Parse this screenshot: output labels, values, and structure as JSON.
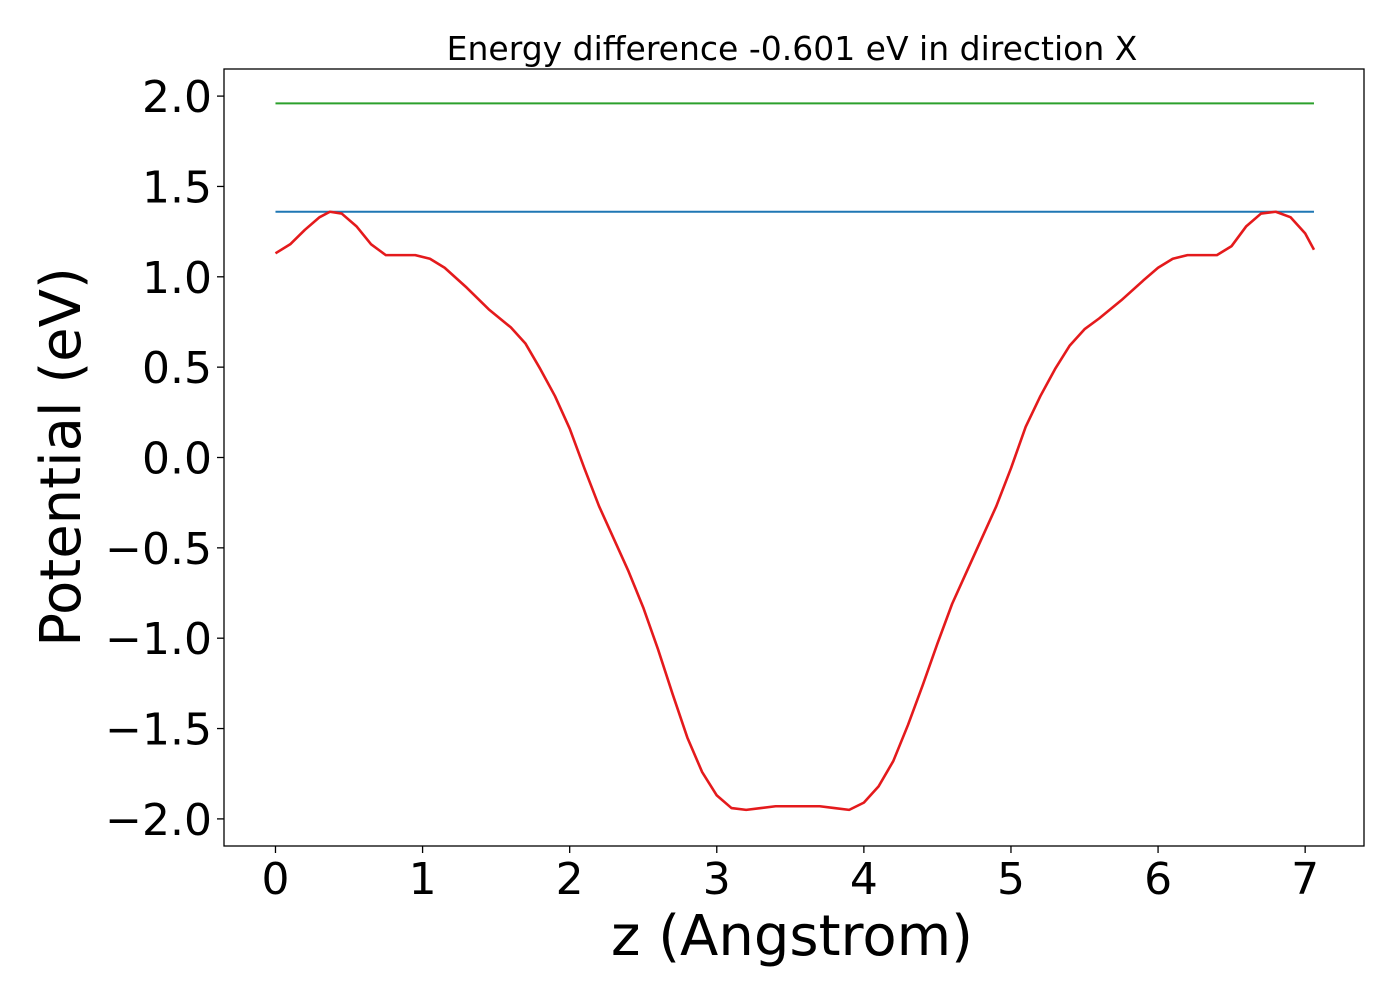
{
  "chart_data": {
    "type": "line",
    "title": "Energy difference -0.601 eV in direction X",
    "xlabel": "z (Angstrom)",
    "ylabel": "Potential (eV)",
    "xlim": [
      -0.35,
      7.4
    ],
    "ylim": [
      -2.15,
      2.15
    ],
    "xticks": [
      0,
      1,
      2,
      3,
      4,
      5,
      6,
      7
    ],
    "xtick_labels": [
      "0",
      "1",
      "2",
      "3",
      "4",
      "5",
      "6",
      "7"
    ],
    "yticks": [
      2.0,
      1.5,
      1.0,
      0.5,
      0.0,
      -0.5,
      -1.0,
      -1.5,
      -2.0
    ],
    "ytick_labels": [
      "2.0",
      "1.5",
      "1.0",
      "0.5",
      "0.0",
      "−0.5",
      "−1.0",
      "−1.5",
      "−2.0"
    ],
    "grid": false,
    "series": [
      {
        "color": "#2ca02c",
        "x": [
          0,
          7.06
        ],
        "y": [
          1.96,
          1.96
        ]
      },
      {
        "color": "#1f77b4",
        "x": [
          0,
          7.06
        ],
        "y": [
          1.36,
          1.36
        ]
      },
      {
        "color": "#e41a1c",
        "x": [
          0,
          0.1,
          0.2,
          0.3,
          0.37,
          0.45,
          0.55,
          0.65,
          0.75,
          0.85,
          0.95,
          1.05,
          1.15,
          1.3,
          1.45,
          1.6,
          1.7,
          1.8,
          1.9,
          2.0,
          2.1,
          2.2,
          2.3,
          2.4,
          2.5,
          2.6,
          2.7,
          2.8,
          2.9,
          3.0,
          3.1,
          3.2,
          3.3,
          3.4,
          3.5,
          3.6,
          3.7,
          3.8,
          3.9,
          4.0,
          4.1,
          4.2,
          4.3,
          4.4,
          4.5,
          4.6,
          4.7,
          4.8,
          4.9,
          5.0,
          5.1,
          5.2,
          5.3,
          5.4,
          5.5,
          5.6,
          5.75,
          5.9,
          6.0,
          6.1,
          6.2,
          6.3,
          6.4,
          6.5,
          6.6,
          6.7,
          6.8,
          6.9,
          7.0,
          7.06
        ],
        "y": [
          1.13,
          1.18,
          1.26,
          1.33,
          1.36,
          1.35,
          1.28,
          1.18,
          1.12,
          1.12,
          1.12,
          1.1,
          1.05,
          0.94,
          0.82,
          0.72,
          0.63,
          0.49,
          0.34,
          0.16,
          -0.06,
          -0.27,
          -0.45,
          -0.63,
          -0.83,
          -1.06,
          -1.31,
          -1.55,
          -1.74,
          -1.87,
          -1.94,
          -1.95,
          -1.94,
          -1.93,
          -1.93,
          -1.93,
          -1.93,
          -1.94,
          -1.95,
          -1.91,
          -1.82,
          -1.68,
          -1.48,
          -1.26,
          -1.03,
          -0.81,
          -0.63,
          -0.45,
          -0.27,
          -0.06,
          0.17,
          0.34,
          0.49,
          0.62,
          0.71,
          0.77,
          0.87,
          0.98,
          1.05,
          1.1,
          1.12,
          1.12,
          1.12,
          1.17,
          1.28,
          1.35,
          1.36,
          1.33,
          1.24,
          1.15
        ]
      }
    ]
  }
}
